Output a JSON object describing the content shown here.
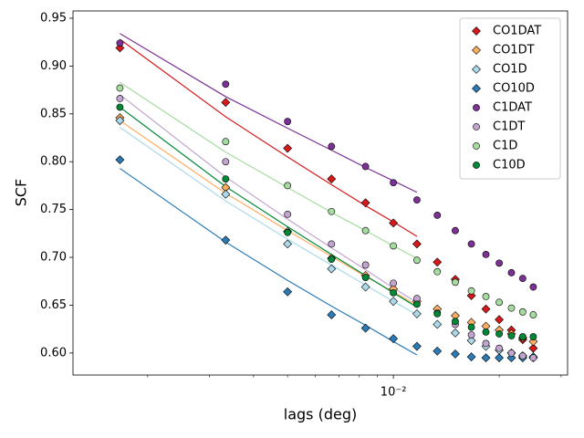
{
  "chart_data": {
    "type": "scatter",
    "xlabel": "lags (deg)",
    "ylabel": "SCF",
    "xscale": "log",
    "x": [
      0.001667,
      0.003333,
      0.005,
      0.006667,
      0.008333,
      0.01,
      0.011667,
      0.013333,
      0.015,
      0.016667,
      0.018333,
      0.02,
      0.021667,
      0.023333,
      0.025
    ],
    "xlim": [
      0.001226,
      0.0313
    ],
    "xticks": [
      {
        "value": 0.01,
        "label": "10⁻²"
      }
    ],
    "xminorticks": [
      0.002,
      0.003,
      0.004,
      0.005,
      0.006,
      0.007,
      0.008,
      0.009,
      0.02,
      0.03
    ],
    "ylim": [
      0.577,
      0.9576
    ],
    "yticks": [
      {
        "value": 0.6,
        "label": "0.60"
      },
      0.65,
      {
        "value": 0.7,
        "label": "0.70"
      },
      0.75,
      {
        "value": 0.8,
        "label": "0.80"
      },
      0.85,
      {
        "value": 0.9,
        "label": "0.90"
      },
      0.95
    ],
    "legend": "upper right",
    "series": [
      {
        "name": "CO1DAT",
        "color": "#d7191c",
        "marker": "diamond",
        "values": [
          0.919,
          0.862,
          0.814,
          0.782,
          0.757,
          0.736,
          0.714,
          0.695,
          0.677,
          0.66,
          0.646,
          0.635,
          0.624,
          0.614,
          0.605
        ],
        "fit": [
          0.928,
          0.847,
          0.805,
          0.776,
          0.754,
          0.737,
          0.722
        ]
      },
      {
        "name": "CO1DT",
        "color": "#fdae61",
        "marker": "diamond",
        "values": [
          0.846,
          0.773,
          0.727,
          0.699,
          0.681,
          0.667,
          0.654,
          0.646,
          0.639,
          0.632,
          0.628,
          0.624,
          0.62,
          0.616,
          0.612
        ],
        "fit": [
          0.843,
          0.767,
          0.728,
          0.701,
          0.68,
          0.664,
          0.65
        ]
      },
      {
        "name": "CO1D",
        "color": "#abd9e9",
        "marker": "diamond",
        "values": [
          0.843,
          0.766,
          0.714,
          0.688,
          0.669,
          0.654,
          0.641,
          0.63,
          0.621,
          0.613,
          0.607,
          0.603,
          0.6,
          0.597,
          0.595
        ],
        "fit": [
          0.836,
          0.759,
          0.719,
          0.692,
          0.671,
          0.654,
          0.64
        ]
      },
      {
        "name": "CO10D",
        "color": "#2c7bb6",
        "marker": "diamond",
        "values": [
          0.802,
          0.718,
          0.664,
          0.64,
          0.626,
          0.615,
          0.607,
          0.602,
          0.599,
          0.596,
          0.595,
          0.595,
          0.595,
          0.595,
          0.596
        ],
        "fit": [
          0.793,
          0.716,
          0.676,
          0.649,
          0.629,
          0.612,
          0.598
        ]
      },
      {
        "name": "C1DAT",
        "color": "#7b3294",
        "marker": "circle",
        "values": [
          0.924,
          0.881,
          0.842,
          0.816,
          0.795,
          0.778,
          0.76,
          0.744,
          0.728,
          0.714,
          0.703,
          0.694,
          0.684,
          0.678,
          0.669
        ],
        "fit": [
          0.934,
          0.868,
          0.835,
          0.812,
          0.794,
          0.78,
          0.768
        ]
      },
      {
        "name": "C1DT",
        "color": "#c2a5cf",
        "marker": "circle",
        "values": [
          0.866,
          0.8,
          0.745,
          0.714,
          0.692,
          0.673,
          0.657,
          0.642,
          0.63,
          0.619,
          0.61,
          0.605,
          0.6,
          0.597,
          0.595
        ],
        "fit": [
          0.87,
          0.784,
          0.74,
          0.71,
          0.687,
          0.668,
          0.653
        ]
      },
      {
        "name": "C1D",
        "color": "#a6dba0",
        "marker": "circle",
        "values": [
          0.877,
          0.821,
          0.775,
          0.748,
          0.728,
          0.712,
          0.697,
          0.685,
          0.674,
          0.665,
          0.659,
          0.653,
          0.647,
          0.643,
          0.64
        ],
        "fit": [
          0.883,
          0.81,
          0.773,
          0.747,
          0.728,
          0.712,
          0.699
        ]
      },
      {
        "name": "C10D",
        "color": "#008837",
        "marker": "circle",
        "values": [
          0.857,
          0.782,
          0.726,
          0.698,
          0.679,
          0.663,
          0.651,
          0.641,
          0.633,
          0.627,
          0.622,
          0.62,
          0.618,
          0.617,
          0.617
        ],
        "fit": [
          0.857,
          0.774,
          0.732,
          0.703,
          0.681,
          0.663,
          0.648
        ]
      }
    ]
  }
}
